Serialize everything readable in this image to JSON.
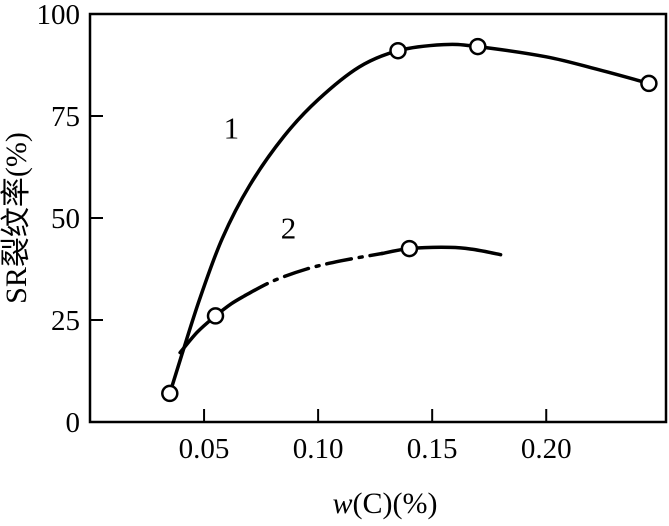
{
  "figure": {
    "background_color": "#ffffff",
    "ink_color": "#000000"
  },
  "chart_data": {
    "type": "line",
    "title": "",
    "xlabel": "w(C)(%)",
    "ylabel": "SR裂纹率(%)",
    "xlim": [
      0,
      0.2525
    ],
    "ylim": [
      0,
      100
    ],
    "grid": false,
    "legend_position": "none",
    "marker_shape": "open-circle",
    "x_ticks": {
      "values": [
        0.05,
        0.1,
        0.15,
        0.2
      ],
      "labels": [
        "0.05",
        "0.10",
        "0.15",
        "0.20"
      ]
    },
    "y_ticks": {
      "values": [
        0,
        25,
        50,
        75,
        100
      ],
      "labels": [
        "0",
        "25",
        "50",
        "75",
        "100"
      ]
    },
    "series": [
      {
        "name": "1",
        "label_text": "1",
        "label_pos": [
          0.062,
          69.5
        ],
        "line_style": "solid",
        "markers": [
          [
            0.035,
            7
          ],
          [
            0.135,
            91
          ],
          [
            0.17,
            92
          ],
          [
            0.245,
            83
          ]
        ],
        "segments": [
          {
            "style": "solid",
            "points": [
              [
                0.035,
                7
              ],
              [
                0.04,
                16
              ],
              [
                0.048,
                30
              ],
              [
                0.058,
                45
              ],
              [
                0.07,
                58
              ],
              [
                0.085,
                70
              ],
              [
                0.1,
                79
              ],
              [
                0.118,
                87
              ],
              [
                0.135,
                91
              ],
              [
                0.155,
                92.5
              ],
              [
                0.17,
                92
              ],
              [
                0.2,
                89.5
              ],
              [
                0.222,
                86.5
              ],
              [
                0.245,
                83
              ]
            ]
          }
        ]
      },
      {
        "name": "2",
        "label_text": "2",
        "label_pos": [
          0.087,
          45
        ],
        "line_style": "dash-dot",
        "markers": [
          [
            0.055,
            26
          ],
          [
            0.14,
            42.5
          ]
        ],
        "segments": [
          {
            "style": "solid",
            "points": [
              [
                0.0395,
                17
              ],
              [
                0.047,
                22
              ],
              [
                0.055,
                26
              ],
              [
                0.062,
                29
              ],
              [
                0.068,
                31
              ]
            ]
          },
          {
            "style": "dash-dot",
            "points": [
              [
                0.068,
                31
              ],
              [
                0.08,
                34.5
              ],
              [
                0.095,
                37.5
              ],
              [
                0.11,
                39.5
              ],
              [
                0.128,
                41.3
              ]
            ]
          },
          {
            "style": "solid",
            "points": [
              [
                0.128,
                41.3
              ],
              [
                0.14,
                42.5
              ],
              [
                0.158,
                42.8
              ],
              [
                0.168,
                42.3
              ],
              [
                0.18,
                41
              ]
            ]
          }
        ]
      }
    ]
  }
}
